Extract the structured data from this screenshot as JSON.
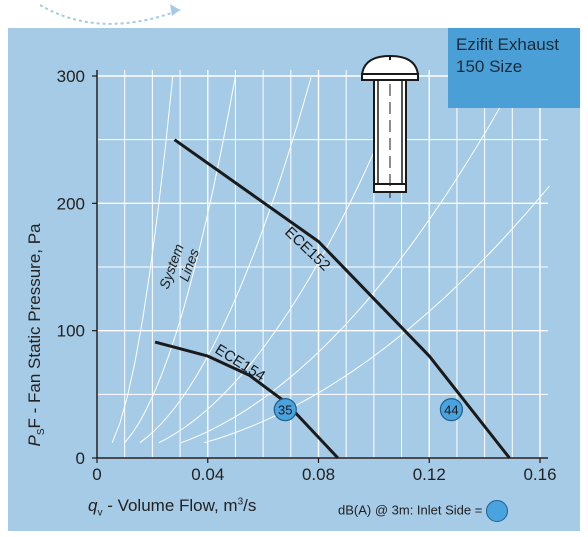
{
  "title_box": {
    "line1": "Ezifit Exhaust",
    "line2": "150 Size"
  },
  "legend_note": {
    "text": "dB(A) @ 3m:  Inlet Side ="
  },
  "system_lines_label": {
    "line1": "System",
    "line2": "Lines"
  },
  "chart_data": {
    "type": "line",
    "title": "",
    "xlabel_parts": {
      "var": "q",
      "sub": "v",
      "text": " - Volume Flow, m",
      "sup": "3",
      "tail": "/s"
    },
    "ylabel_parts": {
      "var": "P",
      "sub": "S",
      "text": "F - Fan Static Pressure, Pa"
    },
    "xlim": [
      0,
      0.16
    ],
    "ylim": [
      0,
      300
    ],
    "xticks": [
      0,
      0.04,
      0.08,
      0.12,
      0.16
    ],
    "xtick_labels": [
      "0",
      "0.04",
      "0.08",
      "0.12",
      "0.16"
    ],
    "yticks": [
      0,
      100,
      200,
      300
    ],
    "ytick_labels": [
      "0",
      "100",
      "200",
      "300"
    ],
    "grid": true,
    "series": [
      {
        "name": "ECE152",
        "points": [
          [
            0.028,
            250
          ],
          [
            0.08,
            170
          ],
          [
            0.12,
            80
          ],
          [
            0.149,
            0
          ]
        ],
        "color": "#1a1a1a"
      },
      {
        "name": "ECE154",
        "points": [
          [
            0.021,
            91
          ],
          [
            0.04,
            80
          ],
          [
            0.055,
            65
          ],
          [
            0.068,
            44
          ],
          [
            0.087,
            0
          ]
        ],
        "color": "#1a1a1a"
      }
    ],
    "data_labels": [
      {
        "label": "35",
        "x": 0.068,
        "y": 38
      },
      {
        "label": "44",
        "x": 0.128,
        "y": 38
      }
    ],
    "system_lines": [
      {
        "k": 400000
      },
      {
        "k": 120000
      },
      {
        "k": 50000
      },
      {
        "k": 24000
      },
      {
        "k": 13000
      },
      {
        "k": 8000
      }
    ],
    "colors": {
      "panel": "#a6cbe6",
      "gridline": "#ffffff",
      "marker_fill": "#4aa3df",
      "marker_stroke": "#1f5f8a",
      "title_box": "#4a9fd6"
    }
  }
}
